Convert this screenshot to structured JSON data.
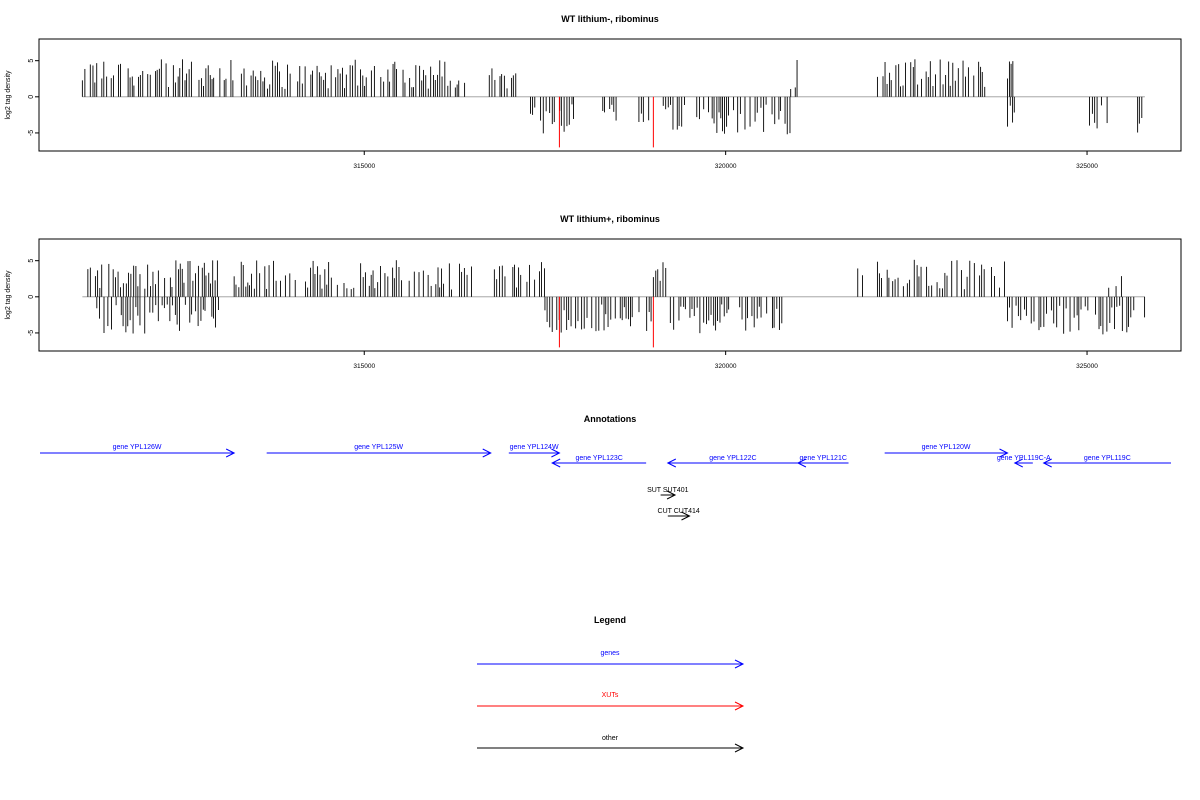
{
  "colors": {
    "axis": "#000000",
    "bars": "#000000",
    "highlight": "#ff0000",
    "genes": "#0000ff",
    "xuts": "#ff0000",
    "other": "#000000",
    "baseline": "#999999"
  },
  "chart_data": [
    {
      "type": "bar",
      "title": "WT lithium-, ribominus",
      "ylabel": "log2 tag density",
      "xlim": [
        310500,
        326300
      ],
      "ylim": [
        -7.5,
        8
      ],
      "xticks": [
        315000,
        320000,
        325000
      ],
      "xtick_labels": [
        "315000",
        "320000",
        "325000"
      ],
      "yticks": [
        5,
        0,
        -5
      ],
      "ytick_labels": [
        "5",
        "0",
        "-5"
      ],
      "grid": false,
      "positive_regions": [
        [
          311100,
          313200
        ],
        [
          313300,
          316400
        ],
        [
          316700,
          317100
        ],
        [
          320900,
          321000
        ],
        [
          322100,
          323600
        ],
        [
          323900,
          324000
        ]
      ],
      "negative_regions": [
        [
          317300,
          317900
        ],
        [
          318300,
          318500
        ],
        [
          318800,
          320900
        ],
        [
          323900,
          324000
        ],
        [
          325000,
          325300
        ],
        [
          325700,
          325800
        ]
      ],
      "highlight_bars": [
        {
          "x": 317700,
          "y": -7
        },
        {
          "x": 319000,
          "y": -7
        }
      ]
    },
    {
      "type": "bar",
      "title": "WT lithium+, ribominus",
      "ylabel": "log2 tag density",
      "xlim": [
        310500,
        326300
      ],
      "ylim": [
        -7.5,
        8
      ],
      "xticks": [
        315000,
        320000,
        325000
      ],
      "xtick_labels": [
        "315000",
        "320000",
        "325000"
      ],
      "yticks": [
        5,
        0,
        -5
      ],
      "ytick_labels": [
        "5",
        "0",
        "-5"
      ],
      "grid": false,
      "positive_regions": [
        [
          311100,
          313000
        ],
        [
          313200,
          316500
        ],
        [
          316800,
          317500
        ],
        [
          319000,
          319200
        ],
        [
          321800,
          321900
        ],
        [
          322100,
          323900
        ],
        [
          325300,
          325500
        ]
      ],
      "negative_regions": [
        [
          311300,
          313000
        ],
        [
          317500,
          319000
        ],
        [
          319200,
          320800
        ],
        [
          323900,
          325800
        ]
      ],
      "highlight_bars": [
        {
          "x": 317700,
          "y": -7
        },
        {
          "x": 319000,
          "y": -7
        }
      ]
    },
    {
      "type": "annotation-track",
      "title": "Annotations",
      "features": [
        {
          "label": "gene YPL126W",
          "start": 310500,
          "end": 313200,
          "strand": "+",
          "class": "genes"
        },
        {
          "label": "gene YPL125W",
          "start": 313650,
          "end": 316750,
          "strand": "+",
          "class": "genes"
        },
        {
          "label": "gene YPL124W",
          "start": 317000,
          "end": 317700,
          "strand": "+",
          "class": "genes"
        },
        {
          "label": "gene YPL123C",
          "start": 317600,
          "end": 318900,
          "strand": "-",
          "class": "genes"
        },
        {
          "label": "gene YPL122C",
          "start": 319200,
          "end": 321000,
          "strand": "-",
          "class": "genes"
        },
        {
          "label": "gene YPL121C",
          "start": 321000,
          "end": 321700,
          "strand": "-",
          "class": "genes"
        },
        {
          "label": "gene YPL120W",
          "start": 322200,
          "end": 323900,
          "strand": "+",
          "class": "genes"
        },
        {
          "label": "gene YPL119C-A",
          "start": 324000,
          "end": 324250,
          "strand": "-",
          "class": "genes"
        },
        {
          "label": "gene YPL119C",
          "start": 324400,
          "end": 326300,
          "strand": "-",
          "class": "genes"
        },
        {
          "label": "SUT SUT401",
          "start": 319100,
          "end": 319300,
          "strand": "+",
          "class": "other"
        },
        {
          "label": "CUT CUT414",
          "start": 319200,
          "end": 319500,
          "strand": "+",
          "class": "other"
        }
      ]
    }
  ],
  "legend": {
    "title": "Legend",
    "items": [
      {
        "label": "genes",
        "color": "#0000ff"
      },
      {
        "label": "XUTs",
        "color": "#ff0000"
      },
      {
        "label": "other",
        "color": "#000000"
      }
    ]
  }
}
